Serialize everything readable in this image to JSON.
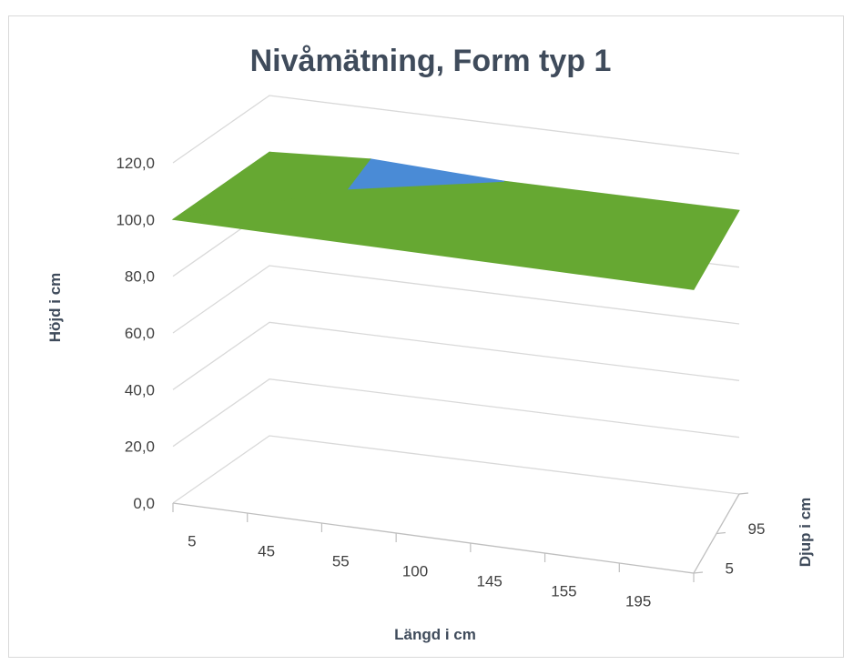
{
  "chart_data": {
    "type": "surface",
    "title": "Nivåmätning, Form typ 1",
    "xlabel": "Längd i cm",
    "ylabel": "Höjd i cm",
    "zlabel": "Djup i cm",
    "x_categories": [
      "5",
      "45",
      "55",
      "100",
      "145",
      "155",
      "195"
    ],
    "depth_categories": [
      "5",
      "95"
    ],
    "y_ticks": [
      "0,0",
      "20,0",
      "40,0",
      "60,0",
      "80,0",
      "100,0",
      "120,0"
    ],
    "ylim": [
      0,
      120
    ],
    "grid": true,
    "surface": {
      "depth_5": [
        100,
        100,
        100,
        100,
        100,
        100,
        100
      ],
      "depth_95": [
        100,
        102,
        101,
        100,
        100,
        100,
        100
      ]
    },
    "colors": {
      "low_band": "#66a832",
      "high_band": "#4a8bd6",
      "grid": "#d9d9d9",
      "text": "#404040",
      "title": "#3f4b5b"
    }
  }
}
